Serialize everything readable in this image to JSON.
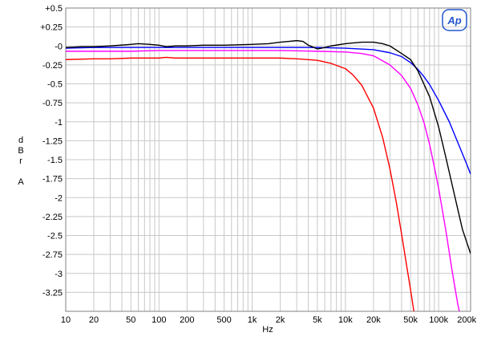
{
  "chart_data": {
    "type": "line",
    "title": "",
    "xlabel": "Hz",
    "ylabel_lines": [
      "d",
      "B",
      "r",
      "",
      "A"
    ],
    "xscale": "log",
    "xlim": [
      10,
      220000
    ],
    "ylim": [
      -3.5,
      0.5
    ],
    "grid": true,
    "legend": "none",
    "logo_text": "Ap",
    "x_ticks": [
      {
        "value": 10,
        "label": "10"
      },
      {
        "value": 20,
        "label": "20"
      },
      {
        "value": 50,
        "label": "50"
      },
      {
        "value": 100,
        "label": "100"
      },
      {
        "value": 200,
        "label": "200"
      },
      {
        "value": 500,
        "label": "500"
      },
      {
        "value": 1000,
        "label": "1k"
      },
      {
        "value": 2000,
        "label": "2k"
      },
      {
        "value": 5000,
        "label": "5k"
      },
      {
        "value": 10000,
        "label": "10k"
      },
      {
        "value": 20000,
        "label": "20k"
      },
      {
        "value": 50000,
        "label": "50k"
      },
      {
        "value": 100000,
        "label": "100k"
      },
      {
        "value": 200000,
        "label": "200k"
      }
    ],
    "y_ticks": [
      {
        "value": 0.5,
        "label": "+0.5"
      },
      {
        "value": 0.25,
        "label": "+0.25"
      },
      {
        "value": 0,
        "label": "-0"
      },
      {
        "value": -0.25,
        "label": "-0.25"
      },
      {
        "value": -0.5,
        "label": "-0.5"
      },
      {
        "value": -0.75,
        "label": "-0.75"
      },
      {
        "value": -1,
        "label": "-1"
      },
      {
        "value": -1.25,
        "label": "-1.25"
      },
      {
        "value": -1.5,
        "label": "-1.5"
      },
      {
        "value": -1.75,
        "label": "-1.75"
      },
      {
        "value": -2,
        "label": "-2"
      },
      {
        "value": -2.25,
        "label": "-2.25"
      },
      {
        "value": -2.5,
        "label": "-2.5"
      },
      {
        "value": -2.75,
        "label": "-2.75"
      },
      {
        "value": -3,
        "label": "-3"
      },
      {
        "value": -3.25,
        "label": "-3.25"
      }
    ],
    "series": [
      {
        "color": "#0000ff",
        "points": [
          [
            10,
            -0.03
          ],
          [
            20,
            -0.02
          ],
          [
            50,
            -0.02
          ],
          [
            100,
            -0.02
          ],
          [
            200,
            -0.02
          ],
          [
            500,
            -0.02
          ],
          [
            1000,
            -0.02
          ],
          [
            2000,
            -0.02
          ],
          [
            5000,
            -0.02
          ],
          [
            10000,
            -0.03
          ],
          [
            20000,
            -0.05
          ],
          [
            30000,
            -0.09
          ],
          [
            40000,
            -0.14
          ],
          [
            50000,
            -0.22
          ],
          [
            60000,
            -0.31
          ],
          [
            70000,
            -0.41
          ],
          [
            80000,
            -0.51
          ],
          [
            100000,
            -0.72
          ],
          [
            130000,
            -1.0
          ],
          [
            160000,
            -1.27
          ],
          [
            200000,
            -1.56
          ],
          [
            220000,
            -1.69
          ]
        ]
      },
      {
        "color": "#000000",
        "points": [
          [
            10,
            -0.02
          ],
          [
            15,
            -0.01
          ],
          [
            20,
            -0.01
          ],
          [
            30,
            0.0
          ],
          [
            50,
            0.02
          ],
          [
            60,
            0.03
          ],
          [
            80,
            0.02
          ],
          [
            100,
            0.01
          ],
          [
            120,
            -0.01
          ],
          [
            150,
            0.0
          ],
          [
            200,
            0.0
          ],
          [
            300,
            0.01
          ],
          [
            500,
            0.01
          ],
          [
            1000,
            0.02
          ],
          [
            1500,
            0.03
          ],
          [
            2000,
            0.05
          ],
          [
            2500,
            0.06
          ],
          [
            3000,
            0.07
          ],
          [
            3500,
            0.06
          ],
          [
            4000,
            0.01
          ],
          [
            5000,
            -0.04
          ],
          [
            6000,
            -0.02
          ],
          [
            7000,
            0.0
          ],
          [
            10000,
            0.03
          ],
          [
            15000,
            0.05
          ],
          [
            20000,
            0.05
          ],
          [
            25000,
            0.03
          ],
          [
            30000,
            0.0
          ],
          [
            40000,
            -0.1
          ],
          [
            50000,
            -0.18
          ],
          [
            60000,
            -0.33
          ],
          [
            80000,
            -0.67
          ],
          [
            100000,
            -1.07
          ],
          [
            120000,
            -1.48
          ],
          [
            150000,
            -2.0
          ],
          [
            180000,
            -2.42
          ],
          [
            220000,
            -2.74
          ]
        ]
      },
      {
        "color": "#ff00ff",
        "points": [
          [
            10,
            -0.07
          ],
          [
            20,
            -0.07
          ],
          [
            50,
            -0.07
          ],
          [
            100,
            -0.06
          ],
          [
            200,
            -0.06
          ],
          [
            500,
            -0.06
          ],
          [
            1000,
            -0.06
          ],
          [
            2000,
            -0.06
          ],
          [
            5000,
            -0.07
          ],
          [
            10000,
            -0.08
          ],
          [
            15000,
            -0.1
          ],
          [
            20000,
            -0.13
          ],
          [
            30000,
            -0.25
          ],
          [
            40000,
            -0.39
          ],
          [
            50000,
            -0.56
          ],
          [
            60000,
            -0.78
          ],
          [
            70000,
            -1.02
          ],
          [
            80000,
            -1.3
          ],
          [
            90000,
            -1.6
          ],
          [
            100000,
            -1.88
          ],
          [
            120000,
            -2.45
          ],
          [
            140000,
            -2.98
          ],
          [
            160000,
            -3.4
          ],
          [
            170000,
            -3.55
          ]
        ]
      },
      {
        "color": "#ff0000",
        "points": [
          [
            10,
            -0.18
          ],
          [
            20,
            -0.17
          ],
          [
            30,
            -0.17
          ],
          [
            50,
            -0.16
          ],
          [
            100,
            -0.16
          ],
          [
            120,
            -0.15
          ],
          [
            150,
            -0.16
          ],
          [
            200,
            -0.16
          ],
          [
            500,
            -0.16
          ],
          [
            1000,
            -0.16
          ],
          [
            2000,
            -0.16
          ],
          [
            3000,
            -0.17
          ],
          [
            5000,
            -0.19
          ],
          [
            7000,
            -0.23
          ],
          [
            10000,
            -0.3
          ],
          [
            12000,
            -0.38
          ],
          [
            15000,
            -0.52
          ],
          [
            20000,
            -0.82
          ],
          [
            25000,
            -1.2
          ],
          [
            30000,
            -1.62
          ],
          [
            35000,
            -2.05
          ],
          [
            40000,
            -2.48
          ],
          [
            45000,
            -2.87
          ],
          [
            50000,
            -3.22
          ],
          [
            55000,
            -3.55
          ]
        ]
      }
    ]
  }
}
